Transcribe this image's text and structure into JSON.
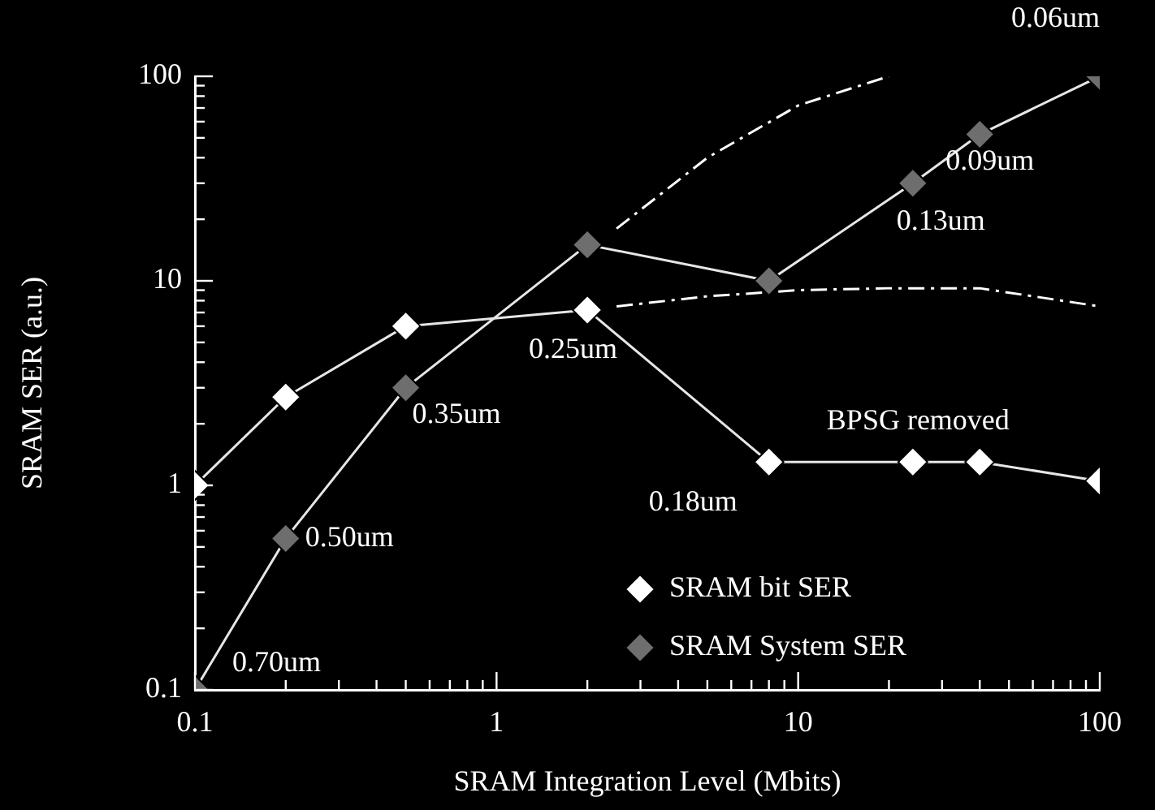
{
  "chart_data": {
    "type": "line",
    "xlabel": "SRAM Integration Level (Mbits)",
    "ylabel": "SRAM SER (a.u.)",
    "log": "xy",
    "grid": false,
    "legend": "bottom right",
    "marker": "diamond",
    "line_style": "solid",
    "x": [
      0.1,
      0.2,
      0.5,
      2,
      8,
      24,
      40,
      100
    ],
    "xlim": [
      0.1,
      100
    ],
    "ylim": [
      0.1,
      100
    ],
    "xticks": [
      0.1,
      {
        "value": 0.2,
        "label": null
      },
      {
        "value": 0.3,
        "label": null
      },
      {
        "value": 0.4,
        "label": null
      },
      {
        "value": 0.5,
        "label": null
      },
      {
        "value": 0.6,
        "label": null
      },
      {
        "value": 0.7,
        "label": null
      },
      {
        "value": 0.8,
        "label": null
      },
      {
        "value": 0.9,
        "label": null
      },
      1,
      {
        "value": 2,
        "label": null
      },
      {
        "value": 3,
        "label": null
      },
      {
        "value": 4,
        "label": null
      },
      {
        "value": 5,
        "label": null
      },
      {
        "value": 6,
        "label": null
      },
      {
        "value": 7,
        "label": null
      },
      {
        "value": 8,
        "label": null
      },
      {
        "value": 9,
        "label": null
      },
      10,
      {
        "value": 20,
        "label": null
      },
      {
        "value": 30,
        "label": null
      },
      {
        "value": 40,
        "label": null
      },
      {
        "value": 50,
        "label": null
      },
      {
        "value": 60,
        "label": null
      },
      {
        "value": 70,
        "label": null
      },
      {
        "value": 80,
        "label": null
      },
      {
        "value": 90,
        "label": null
      },
      100
    ],
    "yticks": [
      0.1,
      {
        "value": 0.2,
        "label": null
      },
      {
        "value": 0.3,
        "label": null
      },
      {
        "value": 0.4,
        "label": null
      },
      {
        "value": 0.5,
        "label": null
      },
      {
        "value": 0.6,
        "label": null
      },
      {
        "value": 0.7,
        "label": null
      },
      {
        "value": 0.8,
        "label": null
      },
      {
        "value": 0.9,
        "label": null
      },
      1,
      {
        "value": 2,
        "label": null
      },
      {
        "value": 3,
        "label": null
      },
      {
        "value": 4,
        "label": null
      },
      {
        "value": 5,
        "label": null
      },
      {
        "value": 6,
        "label": null
      },
      {
        "value": 7,
        "label": null
      },
      {
        "value": 8,
        "label": null
      },
      {
        "value": 9,
        "label": null
      },
      10,
      {
        "value": 20,
        "label": null
      },
      {
        "value": 30,
        "label": null
      },
      {
        "value": 40,
        "label": null
      },
      {
        "value": 50,
        "label": null
      },
      {
        "value": 60,
        "label": null
      },
      {
        "value": 70,
        "label": null
      },
      {
        "value": 80,
        "label": null
      },
      {
        "value": 90,
        "label": null
      },
      100
    ],
    "series": [
      {
        "name": "SRAM bit SER",
        "color": "#ffffff",
        "values": [
          1,
          2.7,
          6,
          7.2,
          1.3,
          1.3,
          1.3,
          1.05
        ]
      },
      {
        "name": "SRAM System SER",
        "color": "#6e6e6e",
        "values": [
          0.1,
          0.55,
          3,
          15,
          10,
          30,
          52,
          100
        ]
      },
      {
        "color": "#ffffff",
        "marker": "none",
        "line_style": "dashed",
        "x": [
          2.5,
          5,
          10,
          20
        ],
        "values": [
          18,
          40,
          72,
          100
        ]
      },
      {
        "color": "#ffffff",
        "marker": "none",
        "line_style": "dashed",
        "x": [
          2.5,
          5,
          10,
          20,
          40,
          100
        ],
        "values": [
          7.5,
          8.4,
          9,
          9.2,
          9.2,
          7.5
        ]
      }
    ],
    "annotations": [
      {
        "text": "0.70um",
        "x": 0.1,
        "y": 0.1
      },
      {
        "text": "0.50um",
        "x": 0.2,
        "y": 0.55
      },
      {
        "text": "0.35um",
        "x": 0.5,
        "y": 3
      },
      {
        "text": "0.25um",
        "x": 2,
        "y": 7.2
      },
      {
        "text": "0.18um",
        "x": 8,
        "y": 1.3
      },
      {
        "text": "0.13um",
        "x": 24,
        "y": 30
      },
      {
        "text": "0.09um",
        "x": 40,
        "y": 52
      },
      {
        "text": "0.06um",
        "x": 100,
        "y": 100
      },
      {
        "text": "BPSG removed",
        "x": 24,
        "y": 1.3
      }
    ]
  }
}
